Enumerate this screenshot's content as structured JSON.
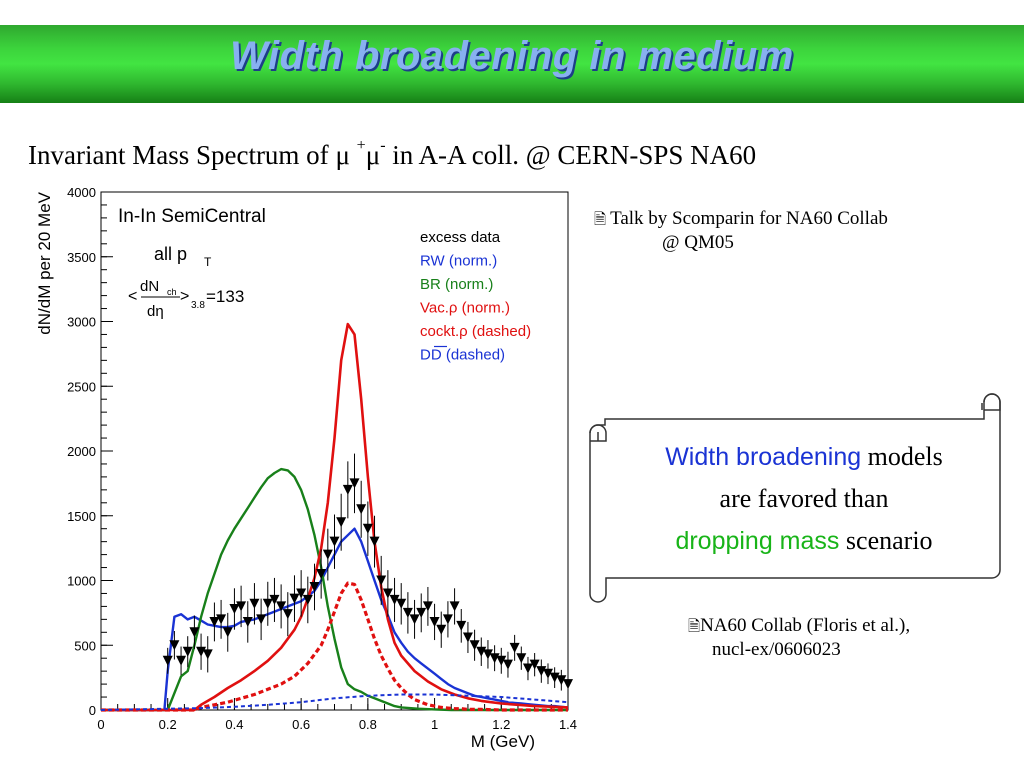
{
  "slide": {
    "title": "Width broadening in medium",
    "subtitle_pre": "Invariant Mass Spectrum of ",
    "subtitle_mu1": "μ",
    "subtitle_plus": "+",
    "subtitle_mu2": "μ",
    "subtitle_minus": "-",
    "subtitle_post": " in A-A coll. @ CERN-SPS NA60",
    "note1_line1": "Talk by Scomparin for NA60 Collab",
    "note1_line2": "@ QM05",
    "note2_line1": "NA60 Collab (Floris et al.),",
    "note2_line2": "nucl-ex/0606023",
    "note_icon": "document-icon",
    "scroll": {
      "w1": "Width broadening",
      "w2": " models",
      "w3": "are favored than",
      "w4": "dropping mass",
      "w5": " scenario"
    },
    "colors": {
      "title_band": "#3cd43c",
      "blue": "#1a33d4",
      "green": "#18b418",
      "red": "#e01010"
    }
  },
  "chart_data": {
    "type": "line",
    "panel_text": "In-In SemiCentral",
    "pt_label": "all p",
    "pt_sub": "T",
    "mult_open": "<",
    "mult_num_main": "dN",
    "mult_num_sub": "ch",
    "mult_den": "dη",
    "mult_close": ">",
    "mult_range": "3.8",
    "mult_value": "=133",
    "xlabel": "M (GeV)",
    "ylabel": "dN/dM per 20 MeV",
    "xlim": [
      0,
      1.4
    ],
    "ylim": [
      0,
      4000
    ],
    "xticks": [
      "0",
      "0.2",
      "0.4",
      "0.6",
      "0.8",
      "1",
      "1.2",
      "1.4"
    ],
    "yticks": [
      "0",
      "500",
      "1000",
      "1500",
      "2000",
      "2500",
      "3000",
      "3500",
      "4000"
    ],
    "legend": [
      {
        "label": "excess data",
        "color": "#000000"
      },
      {
        "label": "RW (norm.)",
        "color": "#1a33d4"
      },
      {
        "label": "BR (norm.)",
        "color": "#18801a"
      },
      {
        "label": "Vac.ρ (norm.)",
        "color": "#e01010"
      },
      {
        "label": "cockt.ρ (dashed)",
        "color": "#e01010"
      },
      {
        "label": "DD (dashed)",
        "color": "#1a33d4"
      }
    ],
    "series": [
      {
        "name": "excess data",
        "marker": "triangle-down",
        "x": [
          0.2,
          0.22,
          0.24,
          0.26,
          0.28,
          0.3,
          0.32,
          0.34,
          0.36,
          0.38,
          0.4,
          0.42,
          0.44,
          0.46,
          0.48,
          0.5,
          0.52,
          0.54,
          0.56,
          0.58,
          0.6,
          0.62,
          0.64,
          0.66,
          0.68,
          0.7,
          0.72,
          0.74,
          0.76,
          0.78,
          0.8,
          0.82,
          0.84,
          0.86,
          0.88,
          0.9,
          0.92,
          0.94,
          0.96,
          0.98,
          1.0,
          1.02,
          1.04,
          1.06,
          1.08,
          1.1,
          1.12,
          1.14,
          1.16,
          1.18,
          1.2,
          1.22,
          1.24,
          1.26,
          1.28,
          1.3,
          1.32,
          1.34,
          1.36,
          1.38,
          1.4
        ],
        "y": [
          380,
          500,
          380,
          450,
          600,
          450,
          430,
          680,
          700,
          600,
          780,
          800,
          680,
          820,
          700,
          820,
          850,
          800,
          740,
          860,
          900,
          850,
          950,
          1050,
          1200,
          1300,
          1450,
          1700,
          1750,
          1550,
          1400,
          1300,
          1000,
          900,
          850,
          820,
          750,
          700,
          750,
          800,
          680,
          620,
          700,
          800,
          650,
          560,
          500,
          450,
          430,
          400,
          380,
          350,
          480,
          400,
          320,
          350,
          300,
          280,
          250,
          230,
          200
        ],
        "err": [
          100,
          110,
          110,
          120,
          130,
          140,
          140,
          150,
          150,
          150,
          160,
          160,
          160,
          160,
          160,
          170,
          170,
          170,
          170,
          180,
          180,
          180,
          180,
          190,
          200,
          210,
          220,
          220,
          230,
          220,
          210,
          200,
          190,
          180,
          170,
          160,
          160,
          150,
          150,
          150,
          140,
          140,
          140,
          140,
          130,
          120,
          120,
          110,
          110,
          100,
          100,
          100,
          100,
          90,
          90,
          90,
          90,
          80,
          80,
          80,
          80
        ]
      },
      {
        "name": "RW (norm.)",
        "color": "#1a33d4",
        "style": "solid",
        "x": [
          0,
          0.19,
          0.2,
          0.22,
          0.24,
          0.26,
          0.28,
          0.3,
          0.32,
          0.34,
          0.36,
          0.38,
          0.4,
          0.42,
          0.44,
          0.46,
          0.48,
          0.5,
          0.52,
          0.54,
          0.56,
          0.58,
          0.6,
          0.62,
          0.64,
          0.66,
          0.68,
          0.7,
          0.72,
          0.74,
          0.76,
          0.78,
          0.8,
          0.82,
          0.84,
          0.86,
          0.88,
          0.9,
          0.92,
          0.94,
          0.96,
          0.98,
          1.0,
          1.02,
          1.04,
          1.06,
          1.08,
          1.1,
          1.12,
          1.14,
          1.16,
          1.18,
          1.2,
          1.22,
          1.24,
          1.26,
          1.28,
          1.3,
          1.32,
          1.34,
          1.36,
          1.38,
          1.4
        ],
        "y": [
          0,
          0,
          300,
          720,
          740,
          700,
          720,
          690,
          660,
          650,
          640,
          640,
          650,
          680,
          690,
          700,
          720,
          740,
          760,
          780,
          800,
          820,
          840,
          880,
          920,
          1000,
          1100,
          1200,
          1300,
          1350,
          1400,
          1300,
          1150,
          1000,
          850,
          730,
          600,
          520,
          450,
          400,
          360,
          320,
          280,
          240,
          200,
          170,
          150,
          130,
          110,
          100,
          90,
          80,
          70,
          60,
          55,
          50,
          45,
          40,
          35,
          30,
          30,
          25,
          20
        ]
      },
      {
        "name": "BR (norm.)",
        "color": "#18801a",
        "style": "solid",
        "x": [
          0,
          0.2,
          0.24,
          0.26,
          0.28,
          0.3,
          0.32,
          0.34,
          0.36,
          0.38,
          0.4,
          0.42,
          0.44,
          0.46,
          0.48,
          0.5,
          0.52,
          0.54,
          0.56,
          0.58,
          0.6,
          0.62,
          0.64,
          0.66,
          0.68,
          0.7,
          0.72,
          0.74,
          0.76,
          0.78,
          0.8,
          0.82,
          0.84,
          0.86,
          0.88,
          0.9,
          0.95,
          1.0,
          1.05,
          1.1,
          1.2,
          1.3,
          1.4
        ],
        "y": [
          0,
          0,
          260,
          300,
          500,
          720,
          900,
          1050,
          1200,
          1310,
          1400,
          1480,
          1560,
          1640,
          1720,
          1790,
          1830,
          1860,
          1850,
          1800,
          1700,
          1550,
          1350,
          1100,
          800,
          550,
          330,
          200,
          160,
          140,
          110,
          90,
          70,
          50,
          30,
          20,
          10,
          5,
          0,
          0,
          0,
          0,
          0
        ]
      },
      {
        "name": "Vac.ρ (norm.)",
        "color": "#e01010",
        "style": "solid",
        "x": [
          0,
          0.28,
          0.3,
          0.34,
          0.38,
          0.42,
          0.46,
          0.5,
          0.54,
          0.58,
          0.6,
          0.62,
          0.64,
          0.66,
          0.68,
          0.7,
          0.72,
          0.74,
          0.76,
          0.78,
          0.8,
          0.82,
          0.84,
          0.86,
          0.88,
          0.9,
          0.94,
          0.98,
          1.02,
          1.06,
          1.1,
          1.14,
          1.2,
          1.3,
          1.4
        ],
        "y": [
          0,
          0,
          40,
          100,
          170,
          230,
          300,
          380,
          480,
          620,
          720,
          860,
          1020,
          1250,
          1600,
          2100,
          2700,
          2980,
          2900,
          2400,
          1800,
          1300,
          950,
          700,
          520,
          420,
          300,
          220,
          160,
          120,
          90,
          70,
          50,
          30,
          20
        ]
      },
      {
        "name": "cockt.ρ (dashed)",
        "color": "#e01010",
        "style": "dashed",
        "x": [
          0,
          0.28,
          0.3,
          0.34,
          0.38,
          0.42,
          0.46,
          0.5,
          0.54,
          0.58,
          0.62,
          0.66,
          0.68,
          0.7,
          0.72,
          0.74,
          0.76,
          0.78,
          0.8,
          0.82,
          0.84,
          0.86,
          0.88,
          0.9,
          0.92,
          0.94,
          0.96,
          0.98,
          1.0,
          1.02,
          1.04,
          1.06,
          1.08,
          1.1,
          1.14,
          1.2,
          1.3,
          1.4
        ],
        "y": [
          0,
          0,
          20,
          40,
          60,
          90,
          120,
          160,
          200,
          260,
          360,
          500,
          620,
          760,
          900,
          980,
          970,
          850,
          700,
          550,
          420,
          320,
          230,
          170,
          120,
          80,
          60,
          40,
          30,
          20,
          15,
          10,
          10,
          5,
          5,
          0,
          0,
          0
        ]
      },
      {
        "name": "DD (dashed)",
        "color": "#1a33d4",
        "style": "dashed",
        "x": [
          0,
          0.1,
          0.2,
          0.3,
          0.4,
          0.5,
          0.6,
          0.7,
          0.8,
          0.9,
          1.0,
          1.1,
          1.2,
          1.3,
          1.4
        ],
        "y": [
          0,
          5,
          10,
          15,
          25,
          40,
          60,
          90,
          110,
          120,
          120,
          110,
          100,
          80,
          60
        ]
      }
    ]
  }
}
